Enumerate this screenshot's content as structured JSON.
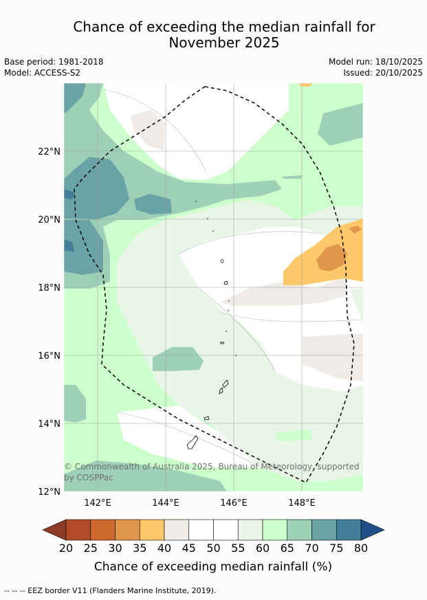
{
  "title_line1": "Chance of exceeding the median rainfall for",
  "title_line2": "November 2025",
  "meta": {
    "base_period": "Base period: 1981-2018",
    "model": "Model: ACCESS-S2",
    "model_run": "Model run: 18/10/2025",
    "issued": "Issued: 20/10/2025"
  },
  "map": {
    "lat_labels": [
      "22°N",
      "20°N",
      "18°N",
      "16°N",
      "14°N",
      "12°N"
    ],
    "lon_labels": [
      "142°E",
      "144°E",
      "146°E",
      "148°E"
    ],
    "copyright": "© Commonwealth of Australia 2025, Bureau of Meteorology, supported",
    "copyright_line2": "by COSPPac"
  },
  "colorbar": {
    "ticks": [
      "20",
      "25",
      "30",
      "35",
      "40",
      "45",
      "50",
      "55",
      "60",
      "65",
      "70",
      "75",
      "80"
    ],
    "colors": [
      "#b14a27",
      "#d0692f",
      "#e1964e",
      "#fdc86a",
      "#efebe7",
      "#ffffff",
      "#ffffff",
      "#e8f5e7",
      "#ccffcc",
      "#9ed0b8",
      "#6aa3a5",
      "#437e99"
    ],
    "low_extend_color": "#8c3b27",
    "high_extend_color": "#1f4f86",
    "label": "Chance of exceeding median rainfall (%)"
  },
  "footer": {
    "eez_note": "--  --  -- EEZ border V11 (Flanders Marine Institute, 2019)."
  }
}
